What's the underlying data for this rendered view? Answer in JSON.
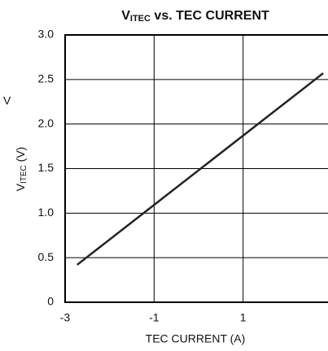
{
  "chart_data": {
    "type": "line",
    "title": [
      "V",
      "ITEC",
      " vs. TEC CURRENT"
    ],
    "ylabel": [
      "V",
      "ITEC",
      " (V)"
    ],
    "xlabel": "TEC CURRENT (A)",
    "annotation": "V",
    "xlim": [
      -3,
      3
    ],
    "ylim": [
      0,
      3
    ],
    "xticks": [
      -3,
      -1,
      1
    ],
    "yticks": [
      0,
      0.5,
      {
        "value": 1,
        "label": "1.0"
      },
      1.5,
      {
        "value": 2,
        "label": "2.0"
      },
      2.5,
      {
        "value": 3,
        "label": "3.0"
      }
    ],
    "grid": true,
    "series": [
      {
        "color": "#222",
        "x": [
          -2.73,
          2.8
        ],
        "values": [
          0.42,
          2.57
        ]
      }
    ]
  }
}
